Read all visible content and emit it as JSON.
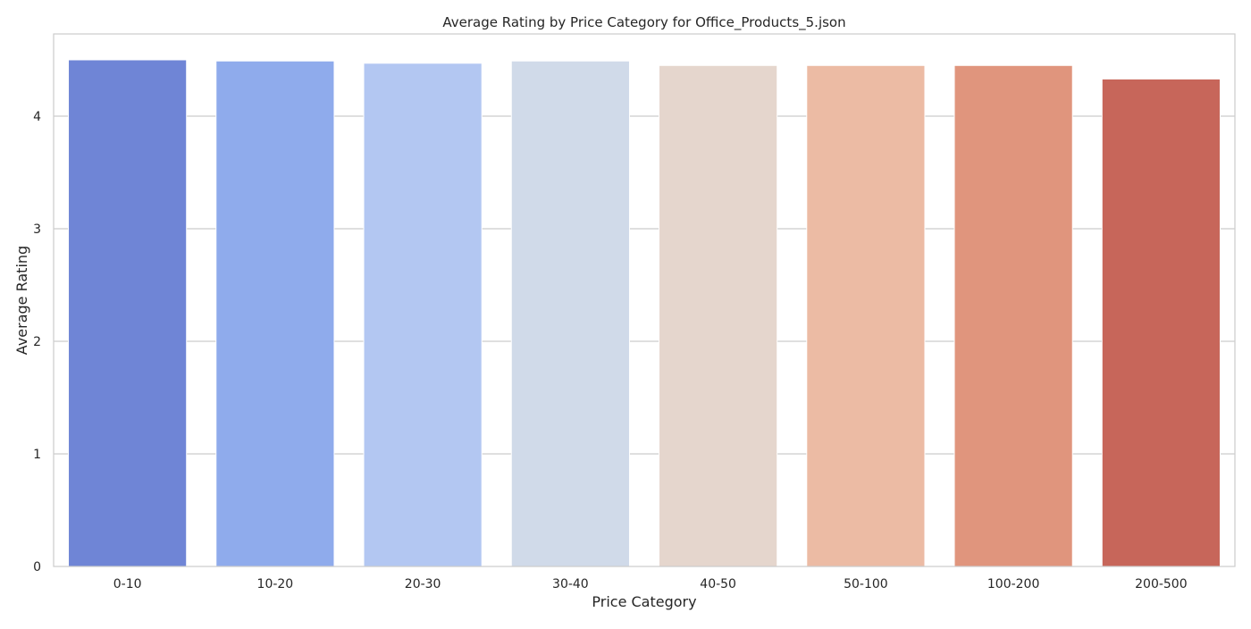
{
  "chart_data": {
    "type": "bar",
    "title": "Average Rating by Price Category for Office_Products_5.json",
    "xlabel": "Price Category",
    "ylabel": "Average Rating",
    "categories": [
      "0-10",
      "10-20",
      "20-30",
      "30-40",
      "40-50",
      "50-100",
      "100-200",
      "200-500"
    ],
    "values": [
      4.5,
      4.49,
      4.47,
      4.49,
      4.45,
      4.45,
      4.45,
      4.33
    ],
    "ylim": [
      0,
      4.73
    ],
    "yticks": [
      0,
      1,
      2,
      3,
      4
    ],
    "grid": "horizontal",
    "colors": [
      "#6f85d6",
      "#8fabec",
      "#b3c7f2",
      "#d0dae9",
      "#e5d6cd",
      "#ecbba4",
      "#e0957d",
      "#c7665a"
    ],
    "gridline_color": "#cccccc",
    "axis_color": "#cccccc"
  }
}
